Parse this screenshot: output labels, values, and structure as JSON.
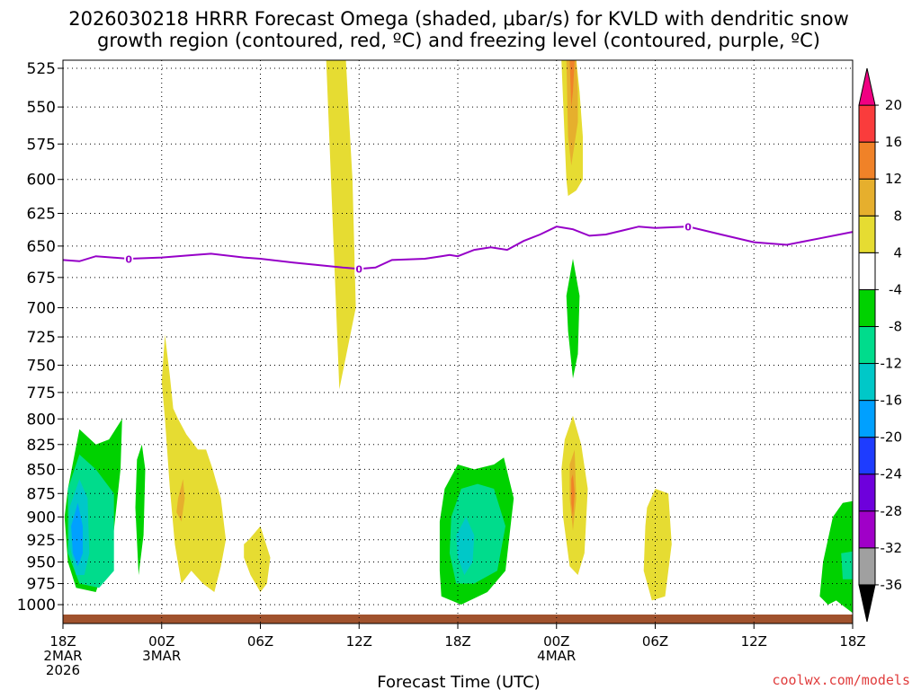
{
  "chart_data": {
    "type": "heatmap",
    "title_line1": "2026030218 HRRR Forecast Omega (shaded, μbar/s) for KVLD with dendritic snow",
    "title_line2": "growth region (contoured, red, ºC) and freezing level (contoured, purple, ºC)",
    "xlabel": "Forecast Time (UTC)",
    "ylabel": "",
    "credit": "coolwx.com/models",
    "x_range_hours": [
      0,
      48
    ],
    "y_range_mb": [
      1010,
      515
    ],
    "y_ticks": [
      525,
      550,
      575,
      600,
      625,
      650,
      675,
      700,
      725,
      750,
      775,
      800,
      825,
      850,
      875,
      900,
      925,
      950,
      975,
      1000
    ],
    "x_ticks": [
      {
        "hour": 0,
        "lines": [
          "18Z",
          "2MAR",
          "2026"
        ]
      },
      {
        "hour": 6,
        "lines": [
          "00Z",
          "3MAR"
        ]
      },
      {
        "hour": 12,
        "lines": [
          "06Z"
        ]
      },
      {
        "hour": 18,
        "lines": [
          "12Z"
        ]
      },
      {
        "hour": 24,
        "lines": [
          "18Z"
        ]
      },
      {
        "hour": 30,
        "lines": [
          "00Z",
          "4MAR"
        ]
      },
      {
        "hour": 36,
        "lines": [
          "06Z"
        ]
      },
      {
        "hour": 42,
        "lines": [
          "12Z"
        ]
      },
      {
        "hour": 48,
        "lines": [
          "18Z"
        ]
      }
    ],
    "colorbar": {
      "colors": [
        "#000000",
        "#a0a0a0",
        "#a000c8",
        "#6e00dc",
        "#1e3cff",
        "#00a0ff",
        "#00c8c8",
        "#00dc8c",
        "#00d200",
        "#ffffff",
        "#e6dc32",
        "#e6af2d",
        "#f08228",
        "#fa3c3c",
        "#f00082"
      ],
      "labels": [
        "-36",
        "-32",
        "-28",
        "-24",
        "-20",
        "-16",
        "-12",
        "-8",
        "-4",
        "4",
        "8",
        "12",
        "16",
        "20"
      ]
    },
    "freezing_level": {
      "label": "0",
      "color": "#9600c8",
      "hours": [
        0,
        1,
        2,
        3,
        4,
        6,
        8,
        9,
        11,
        12,
        14,
        17,
        18,
        19,
        20,
        22,
        23,
        23.5,
        24,
        25,
        26,
        27,
        28,
        29,
        30,
        31,
        32,
        33,
        34,
        35,
        36,
        38,
        40,
        42,
        44,
        46,
        48
      ],
      "mb": [
        661,
        662,
        658,
        659,
        660,
        659,
        657,
        656,
        659,
        660,
        663,
        667,
        668,
        667,
        661,
        660,
        658,
        657,
        658,
        653,
        651,
        653,
        646,
        641,
        635,
        637,
        642,
        641,
        638,
        635,
        636,
        635,
        641,
        647,
        649,
        644,
        639
      ],
      "label_hours": [
        4,
        18,
        38
      ]
    },
    "omega_regions": [
      {
        "level": "8",
        "color": "#e6dc32",
        "hours": [
          16,
          16.5,
          17.2,
          17.4,
          17.6,
          17.8,
          16.8
        ],
        "mb": [
          515,
          515,
          515,
          560,
          600,
          700,
          772
        ]
      },
      {
        "level": "8",
        "color": "#e6dc32",
        "hours": [
          30.3,
          31.2,
          31.4,
          31.6,
          31.6,
          31.2,
          30.7,
          30.6
        ],
        "mb": [
          515,
          515,
          540,
          570,
          600,
          608,
          612,
          600
        ]
      },
      {
        "level": "12",
        "color": "#e6af2d",
        "hours": [
          30.6,
          31.2,
          31.3,
          31.3,
          30.9,
          30.7
        ],
        "mb": [
          515,
          515,
          540,
          560,
          590,
          570
        ]
      },
      {
        "level": "16",
        "color": "#f08228",
        "hours": [
          30.8,
          31.1,
          31.0,
          30.9
        ],
        "mb": [
          515,
          515,
          540,
          550
        ]
      },
      {
        "level": "-8",
        "color": "#00d200",
        "hours": [
          31.0,
          31.4,
          31.3,
          31.0,
          30.7,
          30.6
        ],
        "mb": [
          660,
          690,
          740,
          762,
          720,
          690
        ]
      },
      {
        "level": "-8",
        "color": "#00d200",
        "hours": [
          0.3,
          1.0,
          2.0,
          2.8,
          3.6,
          3.5,
          3.0,
          2.0,
          0.8,
          0.3,
          0.1
        ],
        "mb": [
          870,
          810,
          825,
          820,
          800,
          850,
          930,
          985,
          980,
          950,
          900
        ]
      },
      {
        "level": "-12",
        "color": "#00dc8c",
        "hours": [
          0.3,
          1.0,
          2.0,
          3.1,
          3.1,
          2.2,
          1.0,
          0.3
        ],
        "mb": [
          870,
          835,
          850,
          875,
          960,
          980,
          975,
          940
        ]
      },
      {
        "level": "-16",
        "color": "#00c8c8",
        "hours": [
          0.4,
          1.0,
          1.5,
          1.6,
          1.3,
          0.8,
          0.4
        ],
        "mb": [
          890,
          860,
          880,
          940,
          965,
          965,
          930
        ]
      },
      {
        "level": "-20",
        "color": "#00a0ff",
        "hours": [
          0.5,
          0.9,
          1.2,
          1.2,
          0.9,
          0.6
        ],
        "mb": [
          910,
          885,
          910,
          940,
          955,
          940
        ]
      },
      {
        "level": "-8",
        "color": "#00d200",
        "hours": [
          4.5,
          4.8,
          5.0,
          4.9,
          4.6,
          4.4
        ],
        "mb": [
          840,
          825,
          850,
          920,
          965,
          890
        ]
      },
      {
        "level": "8",
        "color": "#e6dc32",
        "hours": [
          6.0,
          6.2,
          6.5,
          6.7,
          7.0,
          7.5,
          8.2,
          8.7,
          9.1,
          9.6,
          9.9,
          9.6,
          9.2,
          8.5,
          7.8,
          7.2,
          6.8,
          6.5,
          6.2
        ],
        "mb": [
          765,
          723,
          760,
          790,
          800,
          815,
          830,
          830,
          850,
          880,
          925,
          955,
          985,
          975,
          960,
          975,
          930,
          870,
          800
        ]
      },
      {
        "level": "12",
        "color": "#e6af2d",
        "hours": [
          7.0,
          7.3,
          7.4,
          7.2,
          6.9
        ],
        "mb": [
          880,
          860,
          880,
          905,
          895
        ]
      },
      {
        "level": "8",
        "color": "#e6dc32",
        "hours": [
          11.0,
          11.3,
          12.0,
          12.6,
          12.4,
          12.0,
          11.4,
          11.0
        ],
        "mb": [
          930,
          925,
          910,
          945,
          975,
          985,
          965,
          945
        ]
      },
      {
        "level": "-8",
        "color": "#00d200",
        "hours": [
          22.9,
          23.2,
          24.0,
          25.0,
          26.2,
          26.8,
          27.4,
          26.9,
          25.8,
          24.2,
          23.0,
          22.9
        ],
        "mb": [
          905,
          870,
          845,
          850,
          845,
          838,
          880,
          960,
          985,
          1000,
          990,
          960
        ]
      },
      {
        "level": "-12",
        "color": "#00dc8c",
        "hours": [
          23.6,
          24.2,
          25.2,
          26.2,
          26.9,
          26.4,
          25.0,
          23.9,
          23.5
        ],
        "mb": [
          900,
          870,
          865,
          870,
          910,
          960,
          975,
          975,
          940
        ]
      },
      {
        "level": "-16",
        "color": "#00c8c8",
        "hours": [
          23.9,
          24.5,
          25.0,
          24.9,
          24.4,
          24.0
        ],
        "mb": [
          920,
          900,
          920,
          950,
          965,
          945
        ]
      },
      {
        "level": "8",
        "color": "#e6dc32",
        "hours": [
          30.5,
          31.0,
          31.5,
          31.9,
          31.7,
          31.3,
          30.8,
          30.4,
          30.3
        ],
        "mb": [
          820,
          797,
          825,
          870,
          940,
          965,
          955,
          900,
          850
        ]
      },
      {
        "level": "12",
        "color": "#e6af2d",
        "hours": [
          30.8,
          31.1,
          31.2,
          31.0,
          30.8
        ],
        "mb": [
          845,
          830,
          880,
          915,
          880
        ]
      },
      {
        "level": "16",
        "color": "#f08228",
        "hours": [
          30.9,
          31.0,
          31.1,
          31.0,
          30.9
        ],
        "mb": [
          860,
          855,
          875,
          900,
          885
        ]
      },
      {
        "level": "8",
        "color": "#e6dc32",
        "hours": [
          35.5,
          36.0,
          36.8,
          37.0,
          36.6,
          35.8,
          35.3,
          35.4
        ],
        "mb": [
          890,
          870,
          875,
          930,
          990,
          995,
          960,
          910
        ]
      },
      {
        "level": "-8",
        "color": "#00d200",
        "hours": [
          46.2,
          46.8,
          47.4,
          48,
          48,
          47.0,
          46.5,
          46.0
        ],
        "mb": [
          950,
          900,
          885,
          883,
          1010,
          995,
          1000,
          990
        ]
      },
      {
        "level": "-12",
        "color": "#00dc8c",
        "hours": [
          47.3,
          48,
          48,
          47.4
        ],
        "mb": [
          940,
          938,
          970,
          970
        ]
      }
    ]
  }
}
